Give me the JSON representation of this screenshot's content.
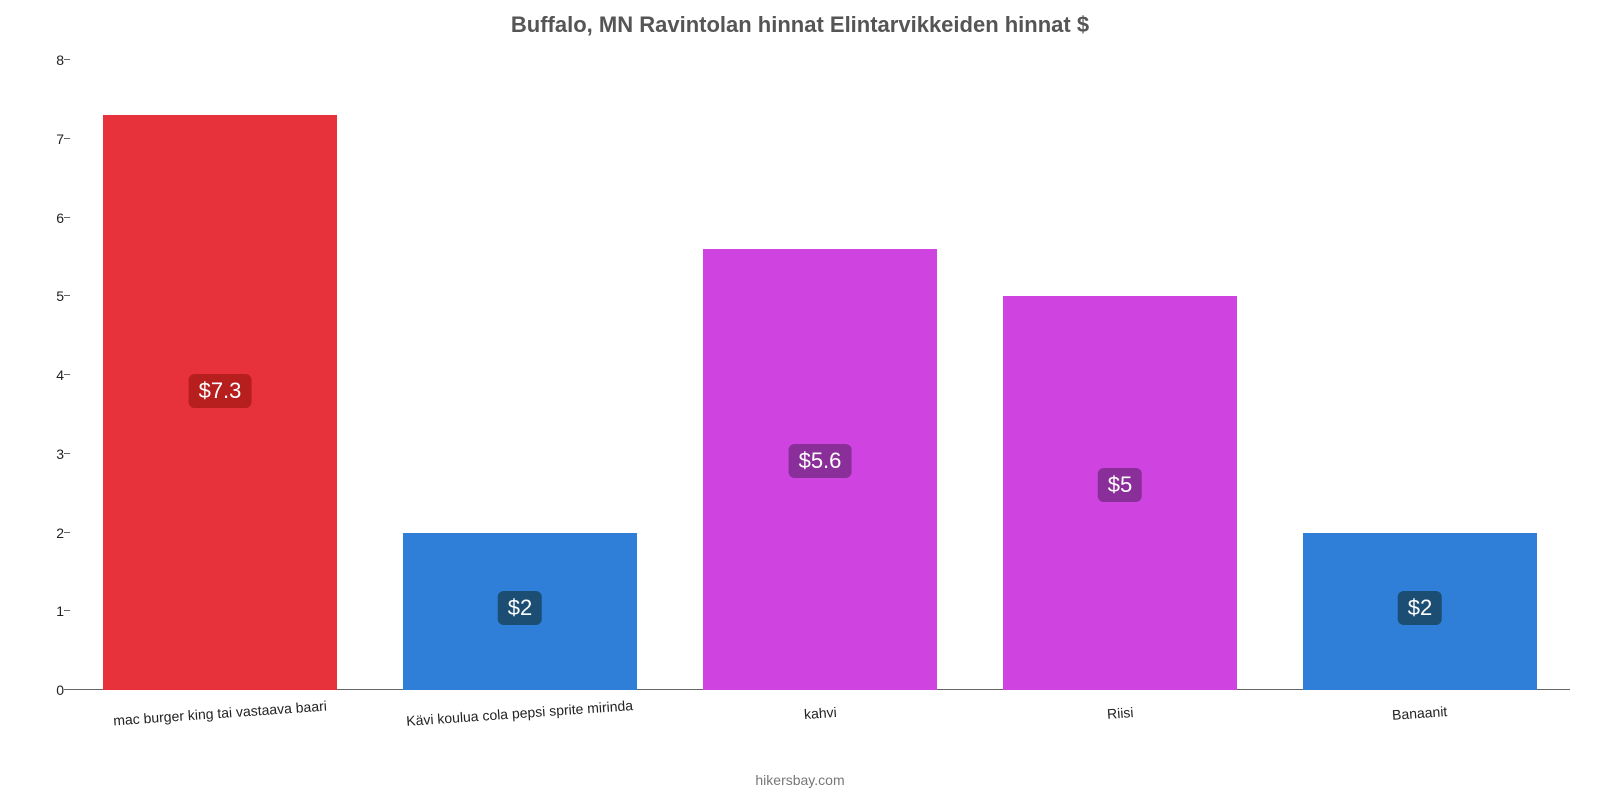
{
  "chart": {
    "type": "bar",
    "title": "Buffalo, MN Ravintolan hinnat Elintarvikkeiden hinnat $",
    "title_fontsize": 22,
    "title_color": "#555555",
    "background_color": "#ffffff",
    "axis_color": "#666666",
    "tick_label_color": "#222222",
    "tick_label_fontsize": 14,
    "xlabel_fontsize": 14,
    "xlabel_rotation_deg": -4,
    "ylim": [
      0,
      8
    ],
    "ytick_step": 1,
    "yticks": [
      0,
      1,
      2,
      3,
      4,
      5,
      6,
      7,
      8
    ],
    "bar_width": 0.78,
    "value_label_fontsize": 22,
    "value_label_text_color": "#ffffff",
    "value_label_radius": 6,
    "value_label_padding": "4px 10px",
    "categories": [
      "mac burger king tai vastaava baari",
      "Kävi koulua cola pepsi sprite mirinda",
      "kahvi",
      "Riisi",
      "Banaanit"
    ],
    "values": [
      7.3,
      2.0,
      5.6,
      5.0,
      2.0
    ],
    "value_labels": [
      "$7.3",
      "$2",
      "$5.6",
      "$5",
      "$2"
    ],
    "bar_colors": [
      "#e8323b",
      "#2f7ed8",
      "#cf43e0",
      "#cf43e0",
      "#2f7ed8"
    ],
    "value_badge_colors": [
      "#b71f1f",
      "#1c4e73",
      "#8a2f99",
      "#8a2f99",
      "#1c4e73"
    ],
    "value_badge_y_offset": 0.5,
    "attribution": "hikersbay.com",
    "attribution_color": "#777777",
    "attribution_fontsize": 14
  }
}
